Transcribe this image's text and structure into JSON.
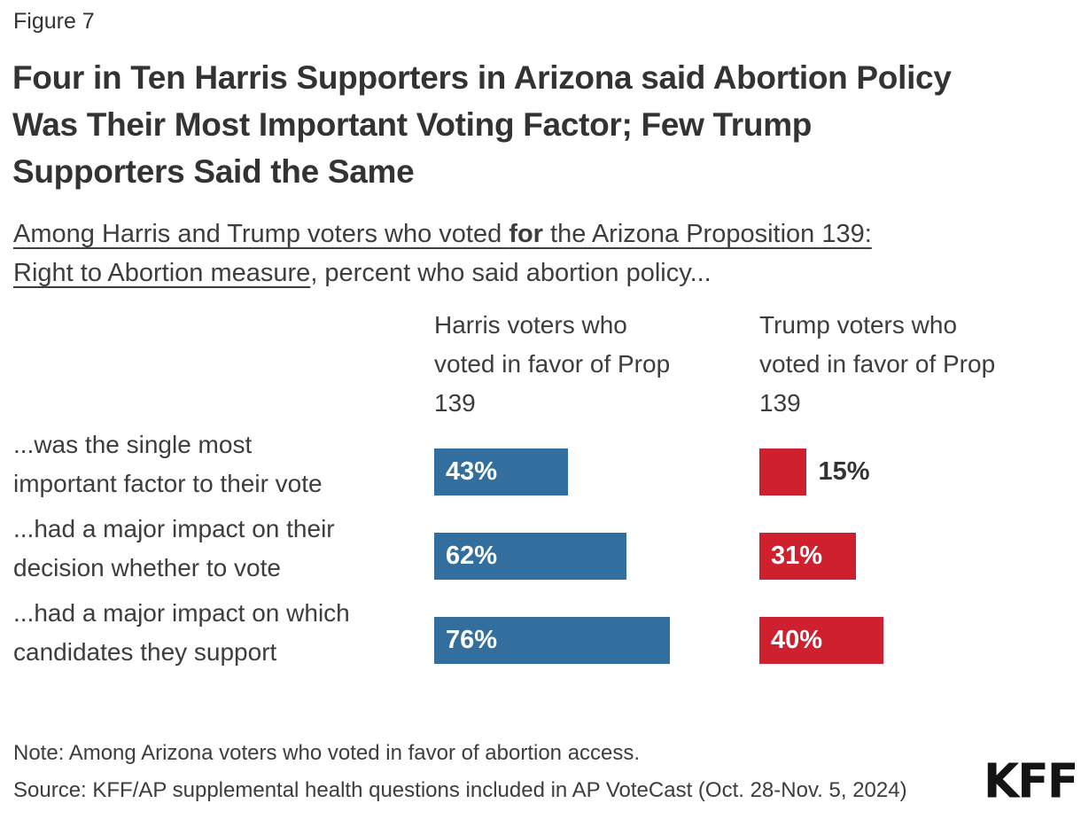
{
  "page": {
    "figure_label": "Figure 7",
    "title_lines": [
      "Four in Ten Harris Supporters in Arizona said Abortion Policy",
      "Was Their Most Important Voting Factor; Few Trump",
      "Supporters Said the Same"
    ],
    "subtitle_lines": [
      [
        {
          "text": "Among Harris and Trump voters who voted ",
          "underline": true,
          "bold": false
        },
        {
          "text": "for",
          "underline": true,
          "bold": true
        },
        {
          "text": " the Arizona Proposition 139:",
          "underline": true,
          "bold": false
        }
      ],
      [
        {
          "text": "Right to Abortion measure",
          "underline": true,
          "bold": false
        },
        {
          "text": ", percent who said abortion policy...",
          "underline": false,
          "bold": false
        }
      ]
    ],
    "note": "Note: Among Arizona voters who voted in favor of abortion access.",
    "source": "Source: KFF/AP supplemental health questions included in AP VoteCast (Oct. 28-Nov. 5, 2024)",
    "logo_text": "KFF"
  },
  "chart_data": {
    "type": "bar",
    "orientation": "horizontal",
    "title": "Four in Ten Harris Supporters in Arizona said Abortion Policy Was Their Most Important Voting Factor; Few Trump Supporters Said the Same",
    "subtitle": "Among Harris and Trump voters who voted for the Arizona Proposition 139: Right to Abortion measure, percent who said abortion policy...",
    "categories": [
      "...was the single most important factor to their vote",
      "...had a major impact on their decision whether to vote",
      "...had a major impact on which candidates they support"
    ],
    "category_label_lines": [
      [
        "...was the single most",
        "important factor to their vote"
      ],
      [
        "...had a major impact on their",
        "decision whether to vote"
      ],
      [
        "...had a major impact on which",
        "candidates they support"
      ]
    ],
    "series": [
      {
        "name": "Harris voters who voted in favor of Prop 139",
        "header_lines": [
          "Harris voters who",
          "voted in favor of Prop",
          "139"
        ],
        "color": "#336F9E",
        "values": [
          43,
          62,
          76
        ]
      },
      {
        "name": "Trump voters who voted in favor of Prop 139",
        "header_lines": [
          "Trump voters who",
          "voted in favor of Prop",
          "139"
        ],
        "color": "#CF2030",
        "values": [
          15,
          31,
          40
        ]
      }
    ],
    "value_suffix": "%",
    "xlim": [
      0,
      100
    ],
    "grid": false,
    "legend": "column-headers",
    "value_labels": "inside bar start; outside right when bar is short"
  },
  "style": {
    "bar_blue": "#336F9E",
    "bar_red": "#CF2030",
    "text_dark": "#333333",
    "text_body": "#3D3D3D",
    "value_label_inside": "#FFFFFF",
    "background": "#FFFFFF"
  }
}
